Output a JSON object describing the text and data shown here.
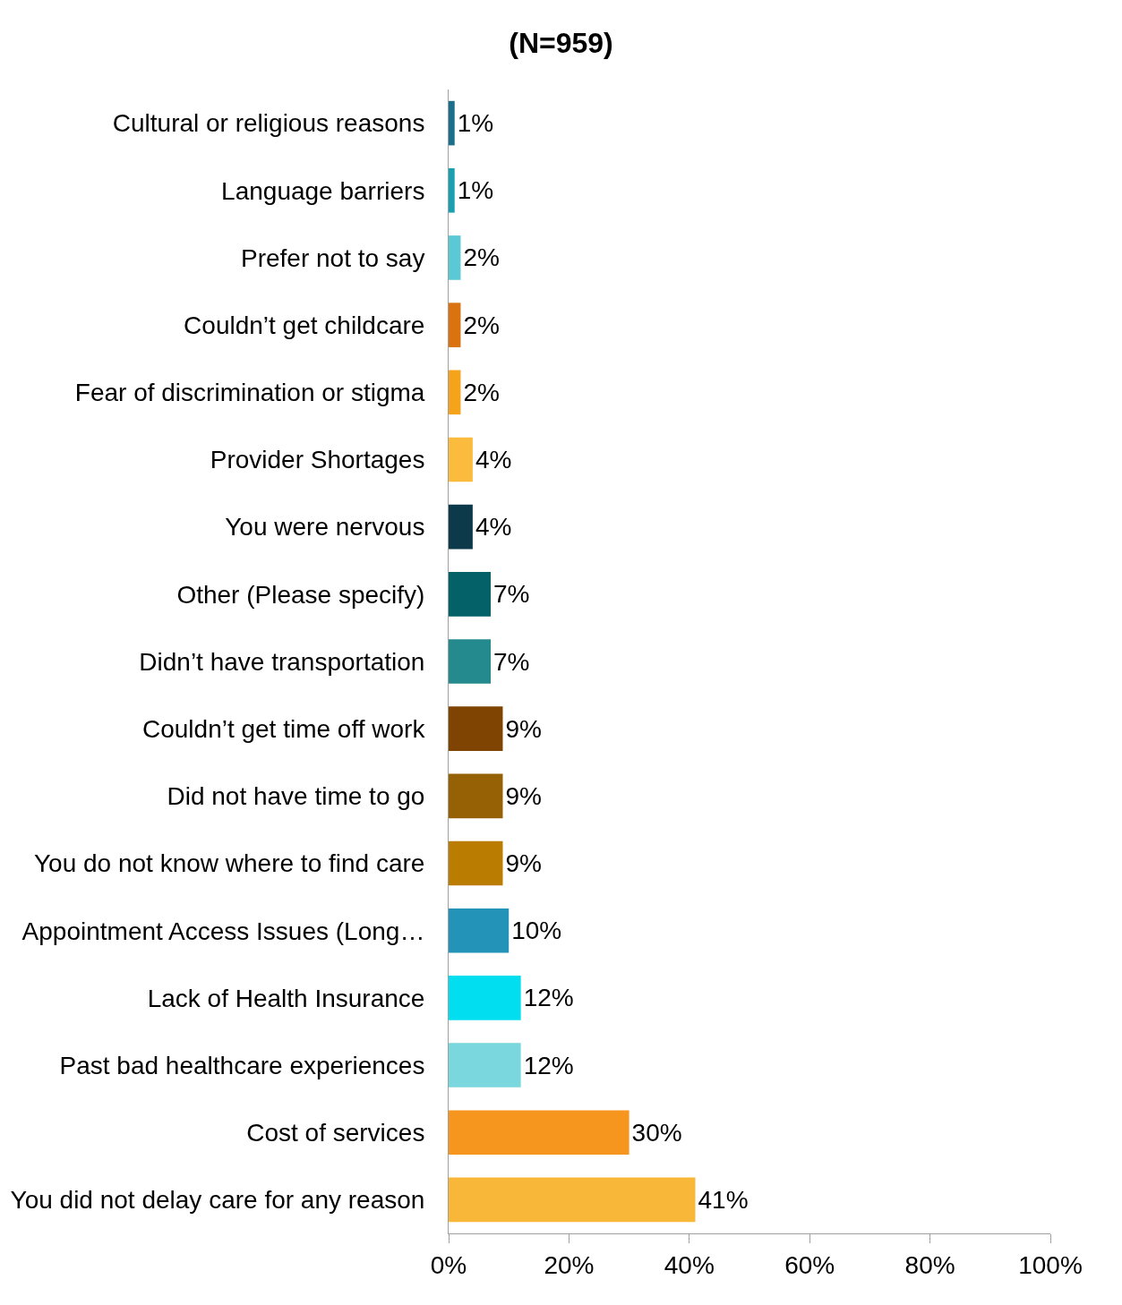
{
  "chart_data": {
    "type": "bar",
    "orientation": "horizontal",
    "title": "(N=959)",
    "categories": [
      "Cultural or religious reasons",
      "Language barriers",
      "Prefer not to say",
      "Couldn’t get childcare",
      "Fear of discrimination or stigma",
      "Provider Shortages",
      "You were nervous",
      "Other (Please specify)",
      "Didn’t have transportation",
      "Couldn’t get time off work",
      "Did not have time to go",
      "You do not know where to find care",
      "Appointment Access Issues (Long…",
      "Lack of Health Insurance",
      "Past bad healthcare experiences",
      "Cost of services",
      "You did not delay care for any reason"
    ],
    "values": [
      1,
      1,
      2,
      2,
      2,
      4,
      4,
      7,
      7,
      9,
      9,
      9,
      10,
      12,
      12,
      30,
      41
    ],
    "value_labels": [
      "1%",
      "1%",
      "2%",
      "2%",
      "2%",
      "4%",
      "4%",
      "7%",
      "7%",
      "9%",
      "9%",
      "9%",
      "10%",
      "12%",
      "12%",
      "30%",
      "41%"
    ],
    "colors": [
      "#1b6f8a",
      "#1a9fb0",
      "#5bc8d6",
      "#d9720f",
      "#f5a31a",
      "#fbbb3c",
      "#0d3a4a",
      "#046168",
      "#248a8d",
      "#7f4402",
      "#966105",
      "#ba7d02",
      "#2393b8",
      "#00def0",
      "#79d7dd",
      "#f7961e",
      "#f9b739"
    ],
    "xlim": [
      0,
      100
    ],
    "xticks": [
      {
        "value": 0,
        "label": "0%"
      },
      {
        "value": 20,
        "label": "20%"
      },
      {
        "value": 40,
        "label": "40%"
      },
      {
        "value": 60,
        "label": "60%"
      },
      {
        "value": 80,
        "label": "80%"
      },
      {
        "value": 100,
        "label": "100%"
      }
    ]
  }
}
